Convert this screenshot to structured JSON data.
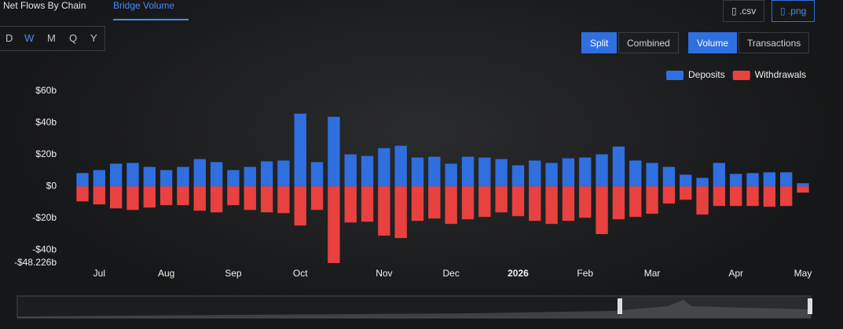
{
  "ui": {
    "tabs": [
      "Net Flows By Chain",
      "Bridge Volume"
    ],
    "periods": [
      "D",
      "W",
      "M",
      "Q",
      "Y"
    ],
    "modes": [
      "Split",
      "Combined"
    ],
    "metrics": [
      "Volume",
      "Transactions"
    ],
    "exports": [
      ".csv",
      ".png"
    ]
  },
  "chart_data": {
    "type": "bar",
    "categories": [
      null,
      "Jul",
      null,
      null,
      null,
      "Aug",
      null,
      null,
      null,
      "Sep",
      null,
      null,
      null,
      "Oct",
      null,
      null,
      null,
      null,
      "Nov",
      null,
      null,
      null,
      "Dec",
      null,
      null,
      null,
      "2026",
      null,
      null,
      null,
      "Feb",
      null,
      null,
      null,
      "Mar",
      null,
      null,
      null,
      null,
      "Apr",
      null,
      null,
      null,
      "May"
    ],
    "series": [
      {
        "name": "Deposits",
        "color": "#2f6fe0",
        "values": [
          8.4,
          10.3,
          14.3,
          14.8,
          12.3,
          10.3,
          12.3,
          17.2,
          15.3,
          10.3,
          12.3,
          15.8,
          16.3,
          45.8,
          15.3,
          43.8,
          20.2,
          19.2,
          24.1,
          25.6,
          18.2,
          18.7,
          14.3,
          18.7,
          18.2,
          17.2,
          13.3,
          16.3,
          14.8,
          17.7,
          18.2,
          20.2,
          25.1,
          16.3,
          14.8,
          12.3,
          7.4,
          5.4,
          14.8,
          7.9,
          8.4,
          8.9,
          8.9,
          2
        ]
      },
      {
        "name": "Withdrawals",
        "color": "#e8413f",
        "values": [
          -9.4,
          -11.3,
          -13.8,
          -14.8,
          -13.3,
          -11.8,
          -11.8,
          -15.3,
          -16.3,
          -11.8,
          -14.8,
          -16.3,
          -16.8,
          -24.6,
          -14.8,
          -48.2,
          -22.7,
          -22.2,
          -31,
          -32.5,
          -21.7,
          -20.2,
          -23.6,
          -20.7,
          -19.2,
          -16.3,
          -18.7,
          -21.7,
          -23.6,
          -21.7,
          -19.7,
          -30,
          -20.7,
          -19.2,
          -17.2,
          -10.8,
          -8.4,
          -17.7,
          -12.3,
          -12.3,
          -12.3,
          -12.8,
          -12.3,
          -3.9
        ]
      }
    ],
    "ylim": [
      -48.226,
      60
    ],
    "yticks": [
      {
        "value": -48.226,
        "label": "-$48.226b"
      },
      {
        "value": -40,
        "label": "-$40b"
      },
      {
        "value": -20,
        "label": "-$20b"
      },
      {
        "value": 0,
        "label": "$0"
      },
      {
        "value": 20,
        "label": "$20b"
      },
      {
        "value": 40,
        "label": "$40b"
      },
      {
        "value": 60,
        "label": "$60b"
      }
    ],
    "legend": "top-right"
  }
}
